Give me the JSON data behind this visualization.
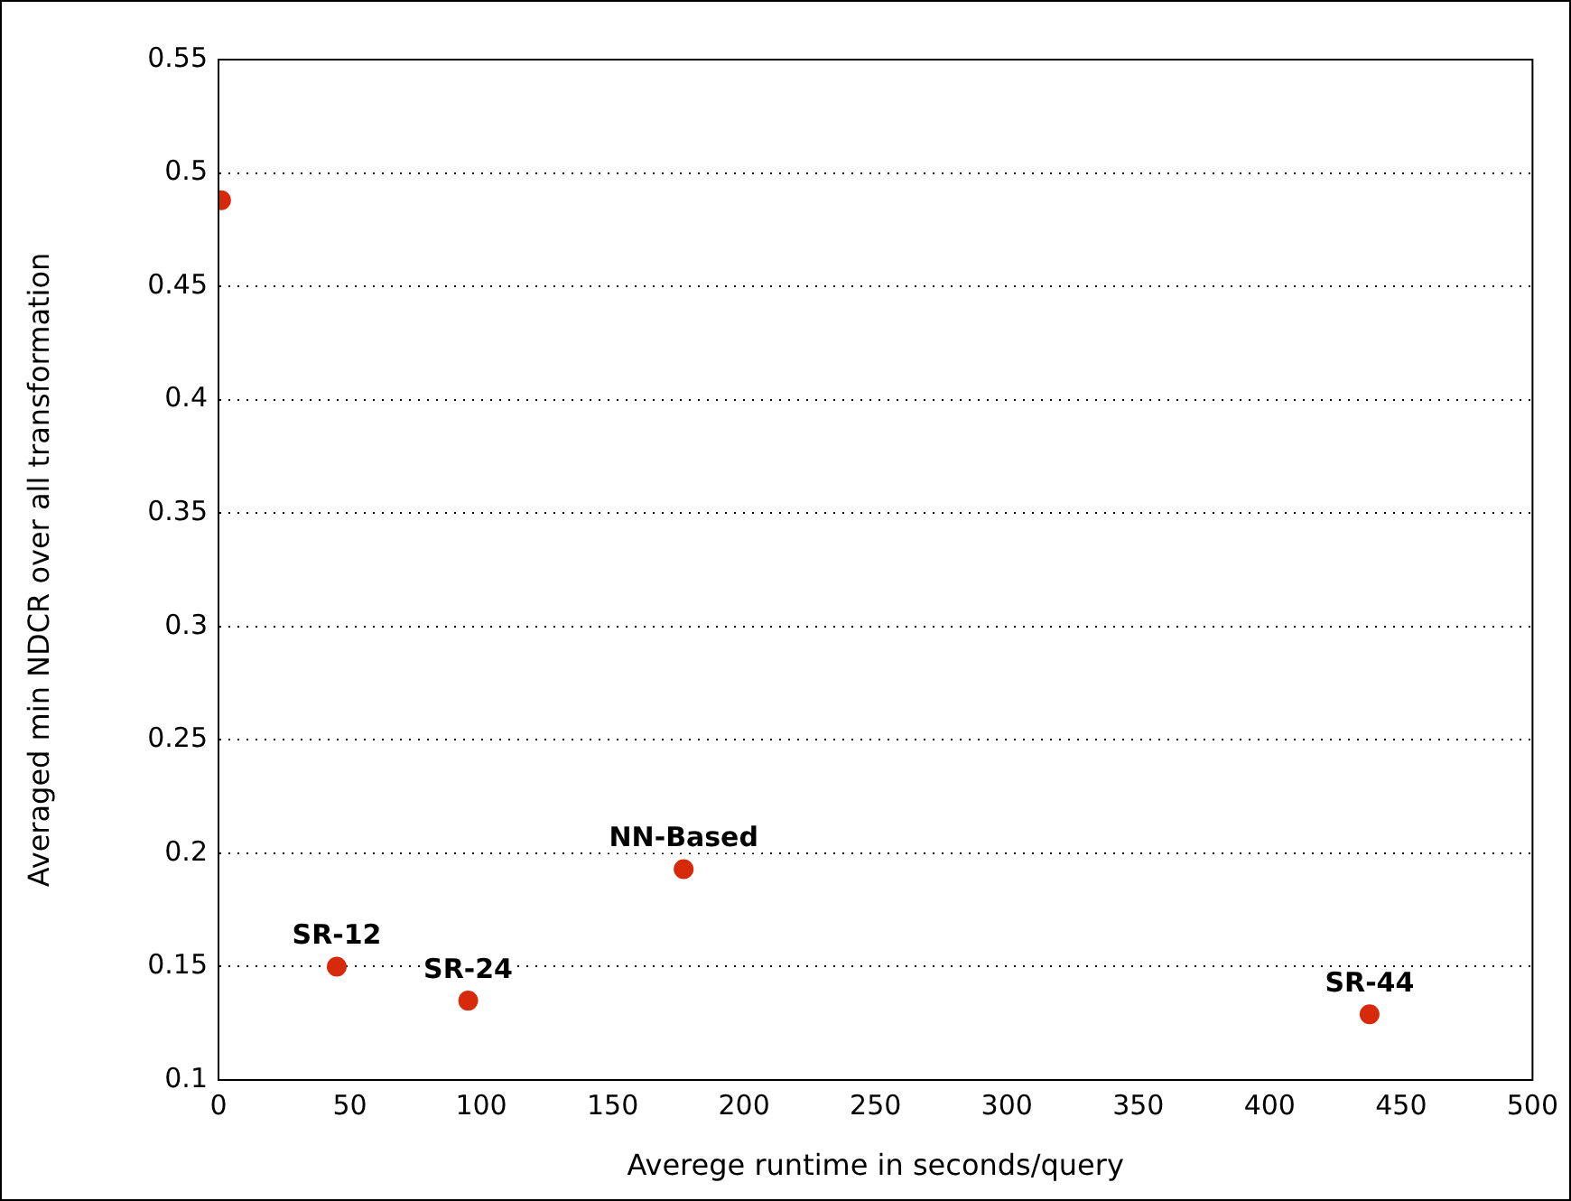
{
  "chart_data": {
    "type": "scatter",
    "xlabel": "Averege runtime in seconds/query",
    "ylabel": "Averaged min NDCR over all transformation",
    "x": [
      1,
      45,
      95,
      177,
      438
    ],
    "series": [
      {
        "color": "#d62a0a",
        "values": [
          0.488,
          0.15,
          0.135,
          0.193,
          0.129
        ]
      }
    ],
    "xlim": [
      0,
      500
    ],
    "xticks": [
      0,
      50,
      100,
      150,
      200,
      250,
      300,
      350,
      400,
      450,
      500
    ],
    "ylim": [
      0.1,
      0.55
    ],
    "yticks": [
      0.1,
      0.15,
      0.2,
      0.25,
      0.3,
      0.35,
      0.4,
      0.45,
      0.5,
      0.55
    ],
    "grid": "y",
    "legend": false,
    "marker": "circle",
    "annotations": [
      {
        "text": "SR-12",
        "x": 45,
        "y": 0.15
      },
      {
        "text": "SR-24",
        "x": 95,
        "y": 0.135
      },
      {
        "text": "NN-Based",
        "x": 177,
        "y": 0.193
      },
      {
        "text": "SR-44",
        "x": 438,
        "y": 0.129
      }
    ]
  }
}
